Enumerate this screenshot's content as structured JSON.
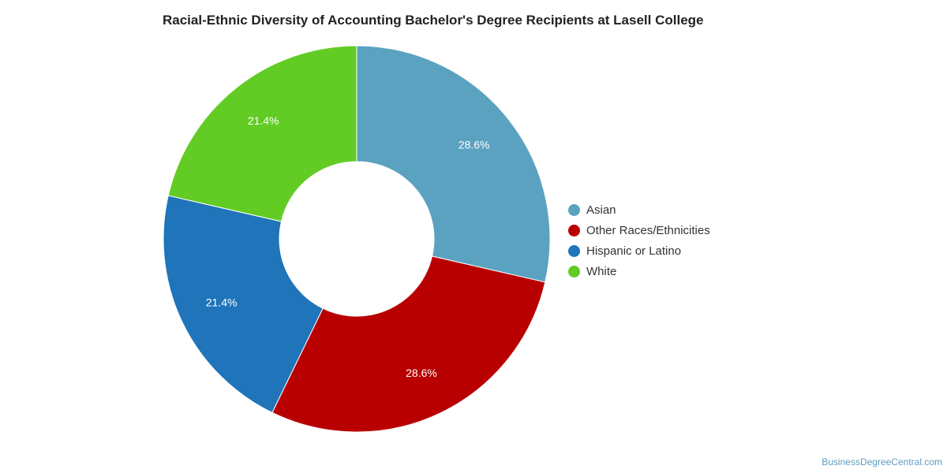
{
  "chart_data": {
    "type": "pie",
    "title": "Racial-Ethnic Diversity of Accounting Bachelor's Degree Recipients at Lasell College",
    "donut": true,
    "legend_position": "right",
    "slices": [
      {
        "name": "Asian",
        "value": 28.6,
        "label": "28.6%",
        "color": "#5ba2c0"
      },
      {
        "name": "Other Races/Ethnicities",
        "value": 28.6,
        "label": "28.6%",
        "color": "#b90000"
      },
      {
        "name": "Hispanic or Latino",
        "value": 21.4,
        "label": "21.4%",
        "color": "#1f74ba"
      },
      {
        "name": "White",
        "value": 21.4,
        "label": "21.4%",
        "color": "#62cc24"
      }
    ]
  },
  "credit": "BusinessDegreeCentral.com"
}
